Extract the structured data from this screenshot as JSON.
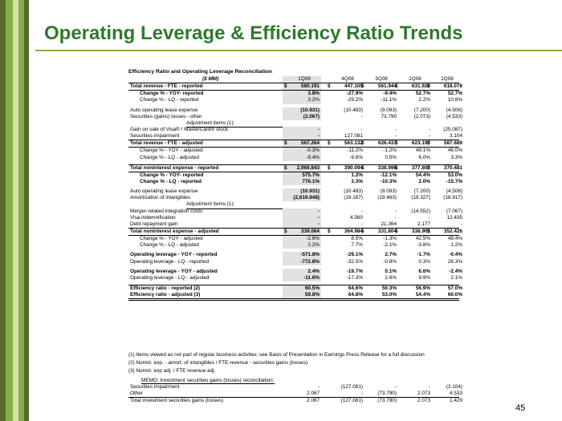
{
  "slide": {
    "title": "Operating Leverage & Efficiency Ratio Trends",
    "page_number": "45",
    "stripe_colors": [
      "#596a2e",
      "#8aae46",
      "#d6dfae"
    ]
  },
  "table": {
    "title": "Efficiency Ratio and Operating Leverage Reconciliation",
    "units": "($ MM)",
    "columns": [
      "1Q09",
      "4Q08",
      "3Q08",
      "2Q08",
      "1Q08"
    ],
    "rows": [
      {
        "label": "Total revenue - FTE - reported",
        "values": [
          "580.191",
          "447.105",
          "561.944",
          "631.920",
          "618.078"
        ],
        "dollar": true,
        "style": "bold",
        "line": "btm"
      },
      {
        "label": "Change % - YOY- reported",
        "values": [
          "3.8%",
          "-27.9%",
          "-9.4%",
          "52.7%",
          "52.7%"
        ],
        "style": "indent-bold"
      },
      {
        "label": "Change % - LQ - reported",
        "values": [
          "3.2%",
          "-29.2%",
          "-11.1%",
          "2.2%",
          "10.6%"
        ],
        "style": "indent"
      },
      {
        "label": "",
        "values": [
          "",
          "",
          "",
          "",
          ""
        ],
        "style": "gap"
      },
      {
        "label": "Auto operating lease expense",
        "values": [
          "(10.931)",
          "(10.483)",
          "(9.093)",
          "(7.200)",
          "(4.506)"
        ]
      },
      {
        "label": "Securities (gains) losses - other",
        "values": [
          "(2.067)",
          "-",
          "73.790",
          "(2.073)",
          "(4.533)"
        ]
      },
      {
        "label": "Adjustment items (1):",
        "values": [
          "",
          "",
          "",
          "",
          ""
        ],
        "style": "sub"
      },
      {
        "label": "Gain on sale of Visa® / MasterCard® stock",
        "values": [
          "-",
          "-",
          "-",
          "-",
          "(25.087)"
        ]
      },
      {
        "label": "Securities impairment",
        "values": [
          "-",
          "127.081",
          "-",
          "-",
          "3.104"
        ],
        "line": "btm"
      },
      {
        "label": "Total revenue - FTE - adjusted",
        "values": [
          "567.264",
          "563.132",
          "626.437",
          "623.197",
          "587.689"
        ],
        "dollar": true,
        "style": "bold",
        "line": "btm"
      },
      {
        "label": "Change % - YOY - adjusted",
        "values": [
          "-0.3%",
          "-11.2%",
          "-1.2%",
          "49.1%",
          "46.0%"
        ],
        "style": "indent"
      },
      {
        "label": "Change % - LQ - adjusted",
        "values": [
          "-9.4%",
          "-9.6%",
          "0.5%",
          "6.0%",
          "3.3%"
        ],
        "style": "indent"
      },
      {
        "label": "",
        "values": [
          "",
          "",
          "",
          "",
          ""
        ],
        "style": "gap"
      },
      {
        "label": "Total noninterest expense - reported",
        "values": [
          "2,969.843",
          "390.094",
          "338.996",
          "377.803",
          "370.481"
        ],
        "dollar": true,
        "style": "bold",
        "line": "both"
      },
      {
        "label": "Change % - YOY- reported",
        "values": [
          "575.7%",
          "1.2%",
          "-12.1%",
          "54.4%",
          "53.0%"
        ],
        "style": "indent-bold"
      },
      {
        "label": "Change % - LQ - reported",
        "values": [
          "776.1%",
          "3.3%",
          "-10.3%",
          "2.0%",
          "-15.7%"
        ],
        "style": "indent-bold"
      },
      {
        "label": "",
        "values": [
          "",
          "",
          "",
          "",
          ""
        ],
        "style": "gap"
      },
      {
        "label": "Auto operating lease expense",
        "values": [
          "(10.931)",
          "(10.483)",
          "(9.093)",
          "(7.200)",
          "(4.506)"
        ]
      },
      {
        "label": "Amortization of intangibles",
        "values": [
          "(2,619.848)",
          "(19.187)",
          "(19.463)",
          "(19.327)",
          "(18.917)"
        ]
      },
      {
        "label": "Adjustment items (1):",
        "values": [
          "",
          "",
          "",
          "",
          ""
        ],
        "style": "sub"
      },
      {
        "label": "Merger-related integration costs",
        "values": [
          "-",
          "-",
          "-",
          "(14.552)",
          "(7.067)"
        ]
      },
      {
        "label": "Visa indemnification",
        "values": [
          "-",
          "4.560",
          "-",
          "-",
          "12.435"
        ]
      },
      {
        "label": "Debt repayment gain",
        "values": [
          "-",
          "-",
          "21.364",
          "2.177",
          "-"
        ],
        "line": "btm"
      },
      {
        "label": "Total noninterest expense - adjusted",
        "values": [
          "339.064",
          "364.984",
          "331.804",
          "338.901",
          "352.426"
        ],
        "dollar": true,
        "style": "bold",
        "line": "btm"
      },
      {
        "label": "Change % - YOY - adjusted",
        "values": [
          "-2.6%",
          "8.5%",
          "-1.3%",
          "42.5%",
          "48.4%"
        ],
        "style": "indent"
      },
      {
        "label": "Change % - LQ - adjusted",
        "values": [
          "2.2%",
          "7.7%",
          "-2.1%",
          "-3.8%",
          "1.2%"
        ],
        "style": "indent"
      },
      {
        "label": "",
        "values": [
          "",
          "",
          "",
          "",
          ""
        ],
        "style": "gap"
      },
      {
        "label": "Operating leverage - YOY - reported",
        "values": [
          "-571.8%",
          "-29.1%",
          "2.7%",
          "-1.7%",
          "-0.4%"
        ],
        "style": "bold"
      },
      {
        "label": "Operating leverage - LQ - reported",
        "values": [
          "-772.8%",
          "-32.5%",
          "-0.8%",
          "0.3%",
          "26.3%"
        ]
      },
      {
        "label": "",
        "values": [
          "",
          "",
          "",
          "",
          ""
        ],
        "style": "gap"
      },
      {
        "label": "Operating leverage - YOY - adjusted",
        "values": [
          "2.4%",
          "-19.7%",
          "0.1%",
          "6.6%",
          "-2.4%"
        ],
        "style": "bold"
      },
      {
        "label": "Operating leverage - LQ - adjusted",
        "values": [
          "-11.6%",
          "-17.3%",
          "2.6%",
          "9.9%",
          "2.1%"
        ]
      },
      {
        "label": "",
        "values": [
          "",
          "",
          "",
          "",
          ""
        ],
        "style": "gap"
      },
      {
        "label": "Efficiency ratio - reported (2)",
        "values": [
          "60.5%",
          "64.6%",
          "50.3%",
          "56.9%",
          "57.0%"
        ],
        "style": "bold",
        "line": "top"
      },
      {
        "label": "Efficiency ratio - adjusted (3)",
        "values": [
          "59.8%",
          "64.8%",
          "53.0%",
          "54.4%",
          "60.0%"
        ],
        "style": "bold",
        "line": "dbl"
      }
    ],
    "footnotes": [
      "(1) Items viewed as not part of regular business activites; see Basis of Presentation in Earnings Press Release for a full discussion",
      "(2) Nonint. exp. - amort. of intangibles / FTE revenue - securities gains (losses)",
      "(3) Nonint. exp adj. / FTE revenue adj."
    ]
  },
  "memo": {
    "title": "MEMO: Investment securities gains (losses) reconciliation:",
    "rows": [
      {
        "label": "Securities impairment",
        "values": [
          "-",
          "(127.081)",
          "-",
          "-",
          "(3.104)"
        ]
      },
      {
        "label": "Other",
        "values": [
          "2.067",
          "-",
          "(73.790)",
          "2.073",
          "4.533"
        ],
        "line": "btm"
      },
      {
        "label": "Total investment securities gains (losses)",
        "values": [
          "2.067",
          "(127.081)",
          "(73.790)",
          "2.073",
          "1.429"
        ]
      }
    ]
  }
}
